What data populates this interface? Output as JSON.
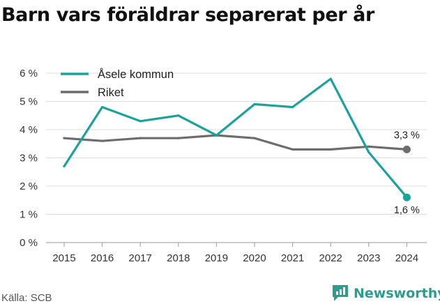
{
  "title": "Barn vars föräldrar separerat per år",
  "source": "Källa: SCB",
  "brand": "Newsworthy",
  "colors": {
    "asele": "#1aa39a",
    "riket": "#6d6d70",
    "brand": "#2a9d8f"
  },
  "chart_data": {
    "type": "line",
    "title": "Barn vars föräldrar separerat per år",
    "xlabel": "",
    "ylabel": "",
    "x": [
      2015,
      2016,
      2017,
      2018,
      2019,
      2020,
      2021,
      2022,
      2023,
      2024
    ],
    "x_tick_labels": [
      "2015",
      "2016",
      "2017",
      "2018",
      "2019",
      "2020",
      "2021",
      "2022",
      "2023",
      "2024"
    ],
    "ylim": [
      0,
      6
    ],
    "y_ticks": [
      0,
      1,
      2,
      3,
      4,
      5,
      6
    ],
    "y_tick_labels": [
      "0 %",
      "1 %",
      "2 %",
      "3 %",
      "4 %",
      "5 %",
      "6 %"
    ],
    "grid": "horizontal",
    "legend_position": "top-left",
    "series": [
      {
        "name": "Åsele kommun",
        "color": "#1aa39a",
        "values": [
          2.7,
          4.8,
          4.3,
          4.5,
          3.8,
          4.9,
          4.8,
          5.8,
          3.2,
          1.6
        ],
        "end_label": "1,6 %"
      },
      {
        "name": "Riket",
        "color": "#6d6d70",
        "values": [
          3.7,
          3.6,
          3.7,
          3.7,
          3.8,
          3.7,
          3.3,
          3.3,
          3.4,
          3.3
        ],
        "end_label": "3,3 %"
      }
    ]
  }
}
